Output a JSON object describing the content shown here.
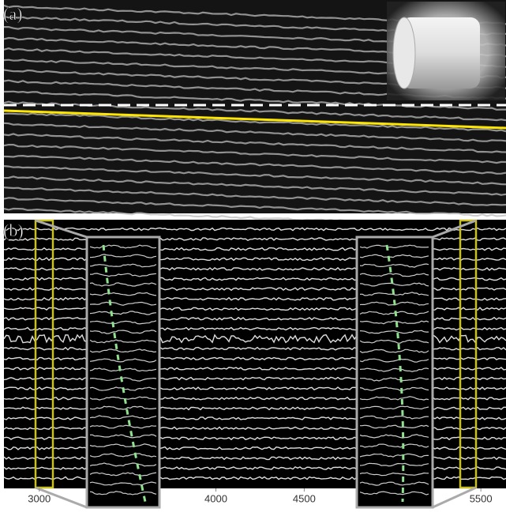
{
  "panel_a": {
    "label": "(a)"
  },
  "panel_b": {
    "label": "(b)",
    "xlim": [
      2800,
      5620
    ],
    "xticks": [
      3000,
      4000,
      4500,
      5500
    ]
  }
}
